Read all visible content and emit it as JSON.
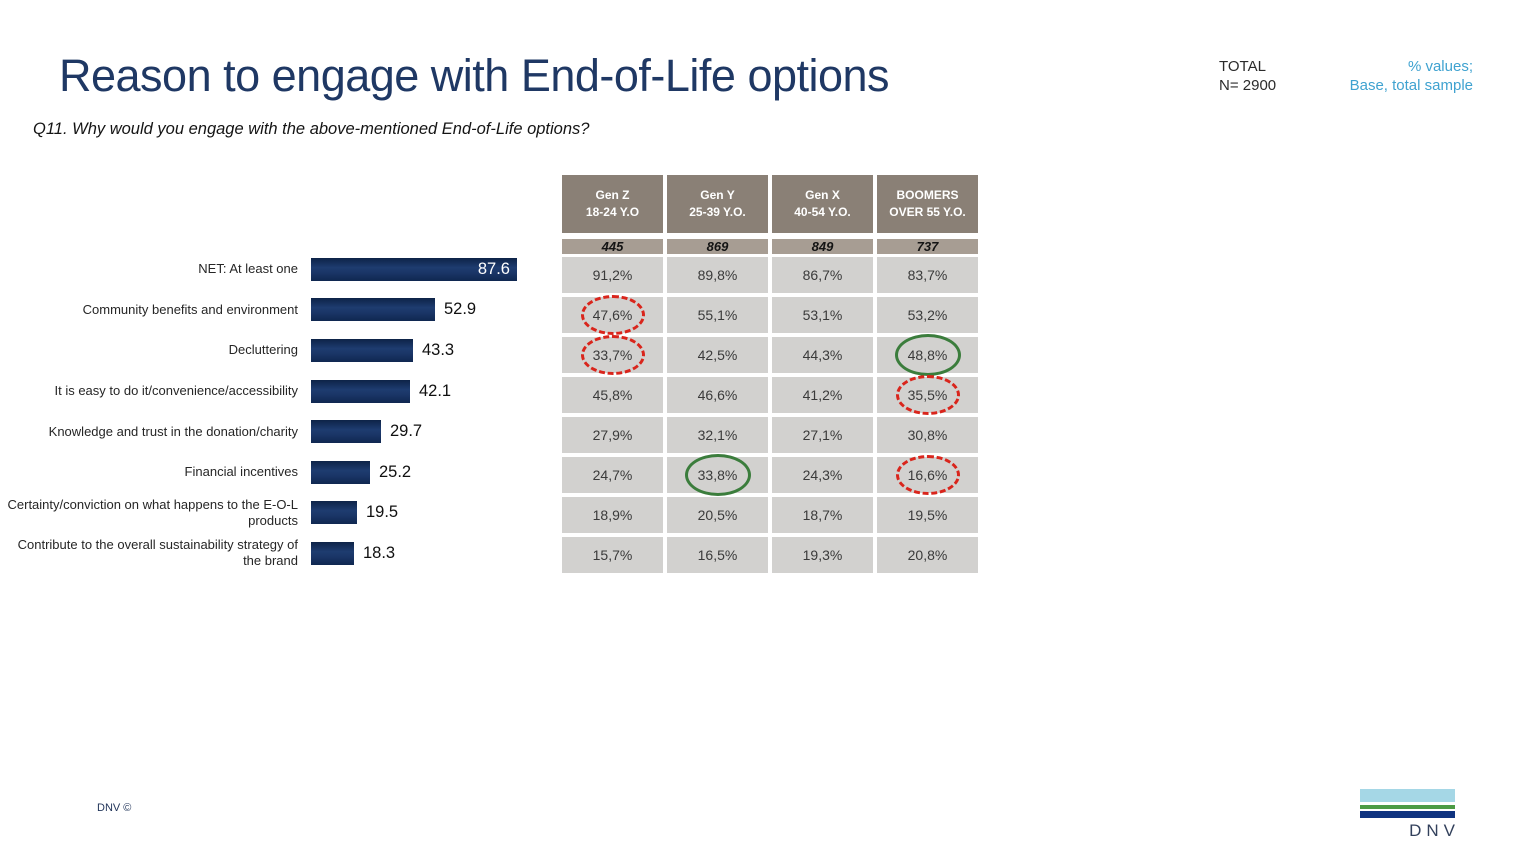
{
  "slide": {
    "title": "Reason to engage with End-of-Life options",
    "subtitle": "Q11. Why would you engage with the above-mentioned End-of-Life options?",
    "total_label": "TOTAL",
    "total_n": "N= 2900",
    "note_line1": "% values;",
    "note_line2": "Base, total sample",
    "footer_left": "DNV ©",
    "logo_text": "DNV",
    "colors": {
      "title_navy": "#1F3864",
      "bar_navy": "#16325E",
      "note_blue": "#3FA2D0",
      "table_header_bg": "#8A8076",
      "table_base_bg": "#A79D93",
      "table_cell_bg": "#D2D1CF",
      "annotation_low_red": "#D9251C",
      "annotation_high_green": "#3B7D3C"
    }
  },
  "chart_data": [
    {
      "type": "bar",
      "orientation": "horizontal",
      "title": "Reason to engage with End-of-Life options (Total, % values)",
      "categories": [
        "NET: At least one",
        "Community benefits and environment",
        "Decluttering",
        "It is easy to do it/convenience/accessibility",
        "Knowledge and trust in the donation/charity",
        "Financial incentives",
        "Certainty/conviction on what happens to the E-O-L products",
        "Contribute to the overall sustainability strategy of the brand"
      ],
      "values": [
        87.6,
        52.9,
        43.3,
        42.1,
        29.7,
        25.2,
        19.5,
        18.3
      ],
      "xlabel": "",
      "ylabel": "",
      "xlim": [
        0,
        100
      ],
      "grid": false,
      "legend": "none",
      "bar_color": "#16325E",
      "value_labels": "outside (first bar inside, white)"
    },
    {
      "type": "table",
      "columns": [
        {
          "gen": "Gen Z",
          "age": "18-24 Y.O",
          "base": "445"
        },
        {
          "gen": "Gen Y",
          "age": "25-39 Y.O.",
          "base": "869"
        },
        {
          "gen": "Gen X",
          "age": "40-54 Y.O.",
          "base": "849"
        },
        {
          "gen": "BOOMERS",
          "age": "OVER 55 Y.O.",
          "base": "737"
        }
      ],
      "rows": [
        [
          "91,2%",
          "89,8%",
          "86,7%",
          "83,7%"
        ],
        [
          "47,6%",
          "55,1%",
          "53,1%",
          "53,2%"
        ],
        [
          "33,7%",
          "42,5%",
          "44,3%",
          "48,8%"
        ],
        [
          "45,8%",
          "46,6%",
          "41,2%",
          "35,5%"
        ],
        [
          "27,9%",
          "32,1%",
          "27,1%",
          "30,8%"
        ],
        [
          "24,7%",
          "33,8%",
          "24,3%",
          "16,6%"
        ],
        [
          "18,9%",
          "20,5%",
          "18,7%",
          "19,5%"
        ],
        [
          "15,7%",
          "16,5%",
          "19,3%",
          "20,8%"
        ]
      ],
      "annotations": [
        {
          "row": 1,
          "col": 0,
          "type": "low"
        },
        {
          "row": 2,
          "col": 0,
          "type": "low"
        },
        {
          "row": 2,
          "col": 3,
          "type": "high"
        },
        {
          "row": 3,
          "col": 3,
          "type": "low"
        },
        {
          "row": 5,
          "col": 1,
          "type": "high"
        },
        {
          "row": 5,
          "col": 3,
          "type": "low"
        }
      ],
      "annotation_legend": {
        "low": "red dashed ellipse (significantly lower)",
        "high": "green solid ellipse (significantly higher)"
      }
    }
  ]
}
